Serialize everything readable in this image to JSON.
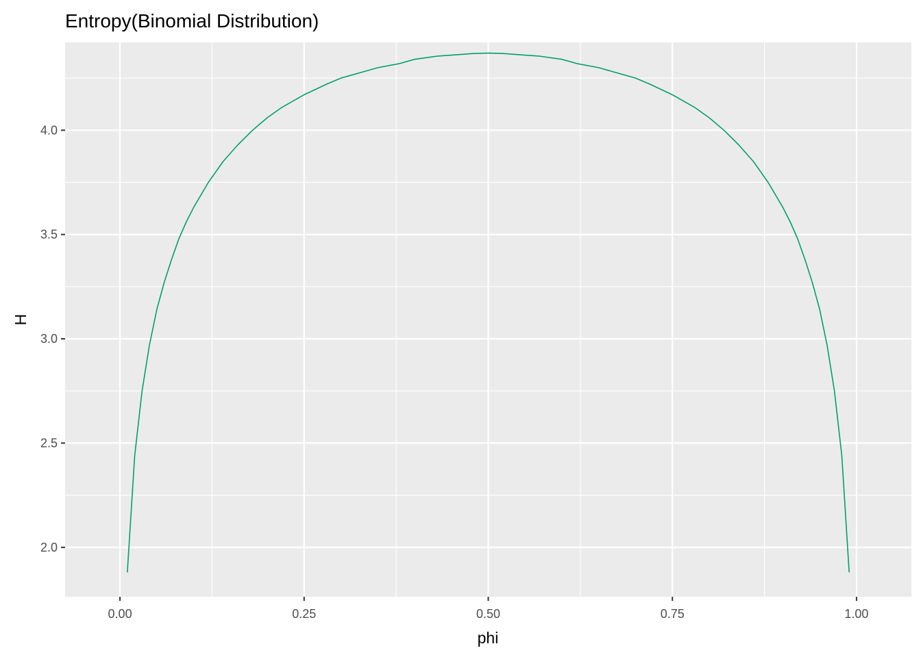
{
  "chart_data": {
    "type": "line",
    "title": "Entropy(Binomial Distribution)",
    "xlabel": "phi",
    "ylabel": "H",
    "xlim": [
      -0.0745,
      1.0745
    ],
    "ylim": [
      1.763,
      4.421
    ],
    "xticks": [
      0.0,
      0.25,
      0.5,
      0.75,
      1.0
    ],
    "xtick_labels": [
      "0.00",
      "0.25",
      "0.50",
      "0.75",
      "1.00"
    ],
    "yticks": [
      2.0,
      2.5,
      3.0,
      3.5,
      4.0
    ],
    "ytick_labels": [
      "2.0",
      "2.5",
      "3.0",
      "3.5",
      "4.0"
    ],
    "grid": true,
    "colors": {
      "panel": "#EBEBEB",
      "grid": "#FFFFFF",
      "line": "#00A06A"
    },
    "series": [
      {
        "x": [
          0.01,
          0.02,
          0.03,
          0.04,
          0.05,
          0.06,
          0.07,
          0.08,
          0.09,
          0.1,
          0.12,
          0.14,
          0.16,
          0.18,
          0.2,
          0.22,
          0.25,
          0.28,
          0.3,
          0.33,
          0.35,
          0.38,
          0.4,
          0.43,
          0.45,
          0.48,
          0.5,
          0.52,
          0.55,
          0.57,
          0.6,
          0.62,
          0.65,
          0.67,
          0.7,
          0.72,
          0.75,
          0.78,
          0.8,
          0.82,
          0.84,
          0.86,
          0.88,
          0.9,
          0.91,
          0.92,
          0.93,
          0.94,
          0.95,
          0.96,
          0.97,
          0.98,
          0.99
        ],
        "y": [
          1.88,
          2.44,
          2.75,
          2.97,
          3.14,
          3.27,
          3.38,
          3.48,
          3.56,
          3.63,
          3.75,
          3.85,
          3.93,
          4.0,
          4.06,
          4.11,
          4.17,
          4.22,
          4.25,
          4.28,
          4.3,
          4.32,
          4.34,
          4.355,
          4.36,
          4.368,
          4.37,
          4.368,
          4.36,
          4.355,
          4.34,
          4.32,
          4.3,
          4.28,
          4.25,
          4.22,
          4.17,
          4.11,
          4.06,
          4.0,
          3.93,
          3.85,
          3.75,
          3.63,
          3.56,
          3.48,
          3.38,
          3.27,
          3.14,
          2.97,
          2.75,
          2.44,
          1.88
        ]
      }
    ]
  }
}
